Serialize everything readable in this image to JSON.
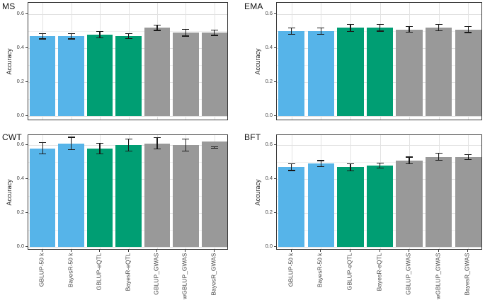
{
  "chart_data": {
    "type": "bar",
    "layout": {
      "grid": "2x2",
      "legend": "none",
      "grid_lines": "on"
    },
    "shared": {
      "ylabel": "Accuracy",
      "ylim": [
        0,
        0.6
      ],
      "yticks": [
        "0.0",
        "0.2",
        "0.4",
        "0.6"
      ],
      "ytick_values": [
        0,
        0.2,
        0.4,
        0.6
      ],
      "minor_ytick_values": [
        0.1,
        0.3,
        0.5
      ],
      "categories": [
        "GBLUP-50 k",
        "BayesR-50 k",
        "GBLUP-eQTL",
        "BayesR-eQTL",
        "GBLUP_GWAS",
        "wGBLUP_GWAS",
        "BayesR_GWAS"
      ],
      "bar_colors": [
        "#56B4E9",
        "#56B4E9",
        "#009E73",
        "#009E73",
        "#999999",
        "#999999",
        "#999999"
      ],
      "error_bar_color": "#1a1a1a",
      "grid_major_color": "#e2e2e2",
      "grid_minor_color": "#f0f0f0",
      "panel_border_color": "#3a3a3a"
    },
    "panels": [
      {
        "title": "MS",
        "values": [
          0.47,
          0.47,
          0.48,
          0.47,
          0.52,
          0.49,
          0.49
        ],
        "errors": [
          0.016,
          0.016,
          0.019,
          0.015,
          0.016,
          0.019,
          0.015
        ]
      },
      {
        "title": "EMA",
        "values": [
          0.5,
          0.5,
          0.52,
          0.52,
          0.51,
          0.52,
          0.51
        ],
        "errors": [
          0.02,
          0.019,
          0.021,
          0.02,
          0.016,
          0.018,
          0.018
        ]
      },
      {
        "title": "CWT",
        "values": [
          0.58,
          0.61,
          0.58,
          0.6,
          0.61,
          0.6,
          0.62
        ],
        "errors": [
          0.033,
          0.036,
          0.032,
          0.035,
          0.033,
          0.034,
          0.004
        ],
        "err_centers": [
          null,
          null,
          null,
          null,
          null,
          null,
          0.585
        ]
      },
      {
        "title": "BFT",
        "values": [
          0.47,
          0.49,
          0.47,
          0.48,
          0.51,
          0.53,
          0.53
        ],
        "errors": [
          0.02,
          0.018,
          0.021,
          0.015,
          0.019,
          0.021,
          0.015
        ]
      }
    ]
  }
}
